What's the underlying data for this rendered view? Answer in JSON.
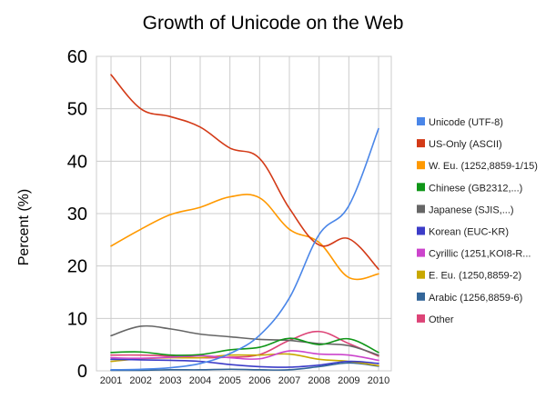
{
  "chart_data": {
    "type": "line",
    "title": "Growth of Unicode on the Web",
    "xlabel": "",
    "ylabel": "Percent (%)",
    "ylim": [
      0,
      60
    ],
    "yticks": [
      0,
      10,
      20,
      30,
      40,
      50,
      60
    ],
    "grid": true,
    "legend_position": "right",
    "categories": [
      "2001",
      "2002",
      "2003",
      "2004",
      "2005",
      "2006",
      "2007",
      "2008",
      "2009",
      "2010"
    ],
    "series": [
      {
        "name": "Unicode (UTF-8)",
        "color": "#4a86e8",
        "values": [
          0.2,
          0.3,
          0.6,
          1.4,
          3.3,
          6.8,
          13.9,
          26.0,
          31.5,
          46.2
        ]
      },
      {
        "name": "US-Only (ASCII)",
        "color": "#d33a17",
        "values": [
          56.5,
          50.0,
          48.5,
          46.5,
          42.5,
          40.5,
          31.0,
          24.0,
          25.2,
          19.4
        ]
      },
      {
        "name": "W. Eu. (1252,8859-1/15)",
        "color": "#ff9900",
        "values": [
          23.8,
          27.0,
          29.8,
          31.2,
          33.2,
          33.0,
          27.0,
          24.5,
          17.8,
          18.5
        ]
      },
      {
        "name": "Chinese (GB2312,...)",
        "color": "#109618",
        "values": [
          3.5,
          3.6,
          3.0,
          3.1,
          4.0,
          4.5,
          6.2,
          5.0,
          6.1,
          3.5
        ]
      },
      {
        "name": "Japanese (SJIS,...)",
        "color": "#666666",
        "values": [
          6.7,
          8.5,
          8.0,
          7.0,
          6.5,
          6.0,
          5.8,
          5.2,
          4.8,
          3.0
        ]
      },
      {
        "name": "Korean (EUC-KR)",
        "color": "#3c3cc8",
        "values": [
          2.2,
          2.1,
          2.0,
          1.8,
          1.2,
          0.8,
          0.7,
          1.1,
          1.8,
          1.4
        ]
      },
      {
        "name": "Cyrillic (1251,KOI8-R...",
        "color": "#cc44cc",
        "values": [
          2.5,
          2.4,
          2.6,
          2.9,
          2.5,
          2.3,
          3.8,
          3.2,
          3.0,
          2.0
        ]
      },
      {
        "name": "E. Eu. (1250,8859-2)",
        "color": "#c8a800",
        "values": [
          1.8,
          2.3,
          2.5,
          2.5,
          3.0,
          3.0,
          3.2,
          2.2,
          1.8,
          1.0
        ]
      },
      {
        "name": "Arabic (1256,8859-6)",
        "color": "#336699",
        "values": [
          0.1,
          0.1,
          0.2,
          0.2,
          0.3,
          0.2,
          0.2,
          0.8,
          1.5,
          0.9
        ]
      },
      {
        "name": "Other",
        "color": "#dd4477",
        "values": [
          3.0,
          3.0,
          2.8,
          2.5,
          2.6,
          3.1,
          5.8,
          7.5,
          5.2,
          2.8
        ]
      }
    ]
  }
}
